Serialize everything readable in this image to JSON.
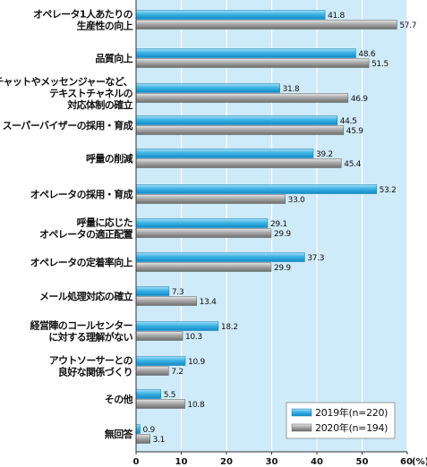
{
  "chart_data": {
    "type": "bar",
    "orientation": "horizontal",
    "unit": "(%)",
    "xlim": [
      0,
      60
    ],
    "xticks": [
      0,
      10,
      20,
      30,
      40,
      50,
      60
    ],
    "categories": [
      [
        "オペレータ1人あたりの",
        "生産性の向上"
      ],
      [
        "品質向上"
      ],
      [
        "チャットやメッセンジャーなど、",
        "テキストチャネルの",
        "対応体制の確立"
      ],
      [
        "スーパーバイザーの採用・育成"
      ],
      [
        "呼量の削減"
      ],
      [
        "オペレータの採用・育成"
      ],
      [
        "呼量に応じた",
        "オペレータの適正配置"
      ],
      [
        "オペレータの定着率向上"
      ],
      [
        "メール処理対応の確立"
      ],
      [
        "経営陣のコールセンター",
        "に対する理解がない"
      ],
      [
        "アウトソーサーとの",
        "良好な関係づくり"
      ],
      [
        "その他"
      ],
      [
        "無回答"
      ]
    ],
    "series": [
      {
        "name": "2019年(n=220)",
        "color": "#3bb3e4",
        "values": [
          41.8,
          48.6,
          31.8,
          44.5,
          39.2,
          53.2,
          29.1,
          37.3,
          7.3,
          18.2,
          10.9,
          5.5,
          0.9
        ]
      },
      {
        "name": "2020年(n=194)",
        "color": "#9a9a9a",
        "values": [
          57.7,
          51.5,
          46.9,
          45.9,
          45.4,
          33.0,
          29.9,
          29.9,
          13.4,
          10.3,
          7.2,
          10.8,
          3.1
        ]
      }
    ],
    "legend_position": "bottom-right",
    "background_color": "#cfeaf8"
  }
}
